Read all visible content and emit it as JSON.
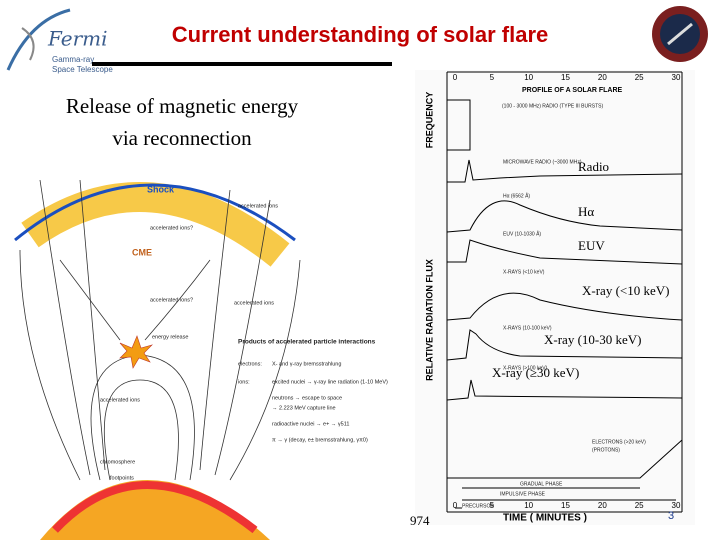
{
  "header": {
    "title": "Current understanding of solar flare",
    "logo": {
      "name": "Fermi",
      "line1": "Gamma-ray",
      "line2": "Space Telescope"
    }
  },
  "subtitle": [
    "Release of magnetic energy",
    "via reconnection"
  ],
  "diagram": {
    "shock": "Shock",
    "cme": "CME",
    "accelerated_ions": "accelerated ions",
    "accelerated_ions_q": "accelerated ions?",
    "energy_release": "energy release",
    "products": "Products of accelerated particle interactions",
    "electrons": "electrons:",
    "electrons_products": "X- and γ-ray bremsstrahlung",
    "ions": "ions:",
    "ions_products": [
      "excited nuclei → γ-ray line radiation (1-10 MeV)",
      "neutrons → escape to space",
      "→ 2.223 MeV capture line",
      "radioactive nuclei → e+ → γ511",
      "π → γ (decay, e± bremsstrahlung, γπ0)"
    ],
    "chromosphere": "chromosphere",
    "footpoints": "footpoints"
  },
  "plot": {
    "title": "PROFILE OF A SOLAR FLARE",
    "frequency_axis": "FREQUENCY",
    "flux_axis": "RELATIVE RADIATION FLUX",
    "time_axis": "TIME ( MINUTES )",
    "time_ticks": [
      "0",
      "5",
      "10",
      "15",
      "20",
      "25",
      "30"
    ],
    "curves": [
      "(100 - 3000 MHz) RADIO (TYPE III BURSTS)",
      "MICROWAVE RADIO (~3000 MHz)",
      "Hα (6562 Å)",
      "EUV (10-1030 Å)",
      "X-RAYS (<10 keV)",
      "X-RAYS (10-100 keV)",
      "X-RAYS (>100 keV)",
      "ELECTRONS (>20 keV)",
      "(PROTONS)"
    ],
    "phases": [
      "GRADUAL PHASE",
      "IMPULSIVE PHASE",
      "PRECURSOR"
    ]
  },
  "overlay_labels": [
    "Radio",
    "Hα",
    "EUV",
    "X-ray (<10 keV)",
    "X-ray (10-30 keV)",
    "X-ray (≥30 keV)"
  ],
  "footer": {
    "fragment": "974",
    "page_number": "3"
  }
}
